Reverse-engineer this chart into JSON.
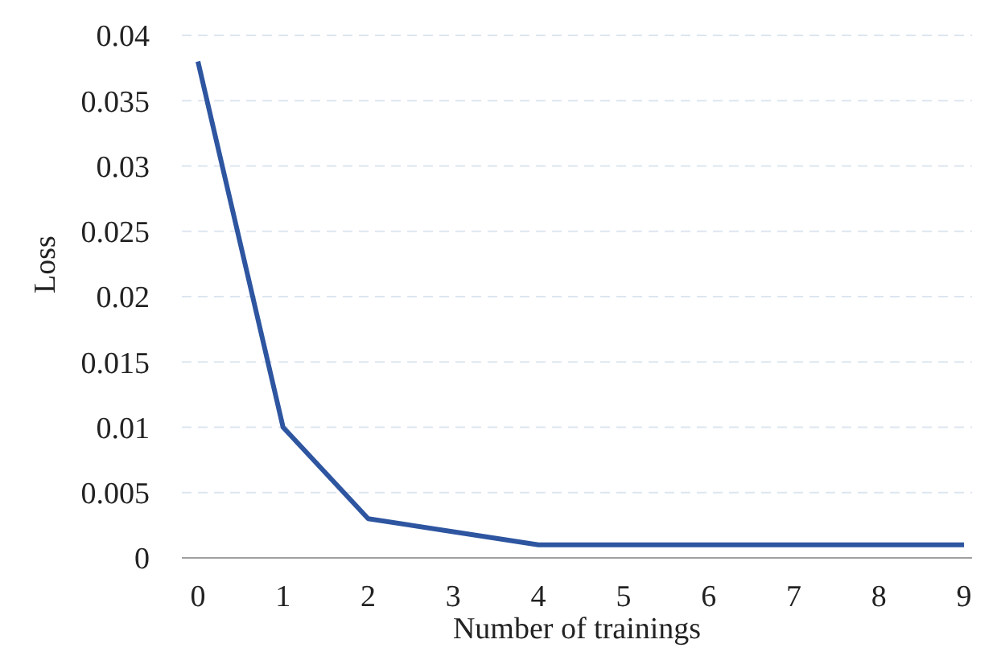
{
  "chart_data": {
    "type": "line",
    "xlabel": "Number of trainings",
    "ylabel": "Loss",
    "categories": [
      "0",
      "1",
      "2",
      "3",
      "4",
      "5",
      "6",
      "7",
      "8",
      "9"
    ],
    "series": [
      {
        "color": "#2e55a0",
        "values": [
          0.038,
          0.01,
          0.003,
          0.002,
          0.001,
          0.001,
          0.001,
          0.001,
          0.001,
          0.001
        ]
      }
    ],
    "ylim": [
      0,
      0.04
    ],
    "yticks": [
      0,
      0.005,
      0.01,
      0.015,
      0.02,
      0.025,
      0.03,
      0.035,
      0.04
    ],
    "grid": "y",
    "marker": "none",
    "line_style": "solid"
  }
}
